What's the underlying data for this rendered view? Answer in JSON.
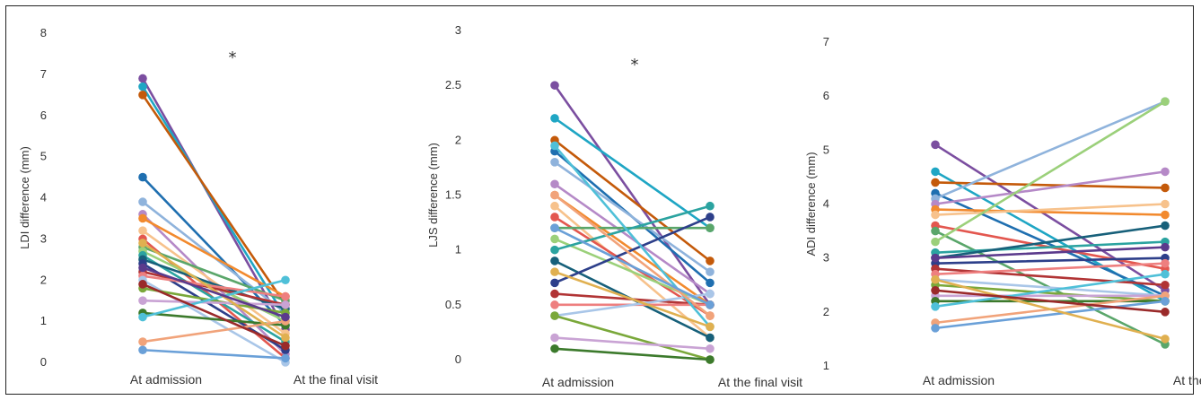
{
  "palette": [
    "#7b4ea0",
    "#1fa6c4",
    "#c45a0a",
    "#1f6fb0",
    "#8fb3dc",
    "#b589c7",
    "#f28a2e",
    "#f7c28c",
    "#e3574f",
    "#5aa66a",
    "#9bd07a",
    "#2ba3a0",
    "#17607a",
    "#2d3f8a",
    "#b13435",
    "#ee7f7f",
    "#a9c6e8",
    "#7aa83a",
    "#c9a3d4",
    "#3c7a2c",
    "#4fc0d8",
    "#f1a37a",
    "#6aa0d8",
    "#e0b050",
    "#5b3a8c",
    "#9a2a2a",
    "#1b4e8a",
    "#f4b6a0",
    "#8ccb5e",
    "#3a8ad0",
    "#d05050",
    "#63b3c8"
  ],
  "chart_data": [
    {
      "type": "line",
      "ylabel": "LDI difference (mm)",
      "ylim": [
        0,
        8
      ],
      "yticks": [
        0,
        1,
        2,
        3,
        4,
        5,
        6,
        7,
        8
      ],
      "categories": [
        "At admission",
        "At the final visit"
      ],
      "annotation": "*",
      "series": [
        {
          "values": [
            6.9,
            0.8
          ]
        },
        {
          "values": [
            6.7,
            1.1
          ]
        },
        {
          "values": [
            6.5,
            1.4
          ]
        },
        {
          "values": [
            4.5,
            0.9
          ]
        },
        {
          "values": [
            3.9,
            1.2
          ]
        },
        {
          "values": [
            3.6,
            0.2
          ]
        },
        {
          "values": [
            3.5,
            1.6
          ]
        },
        {
          "values": [
            3.2,
            0.7
          ]
        },
        {
          "values": [
            3.0,
            0.1
          ]
        },
        {
          "values": [
            2.8,
            1.5
          ]
        },
        {
          "values": [
            2.7,
            1.0
          ]
        },
        {
          "values": [
            2.6,
            0.5
          ]
        },
        {
          "values": [
            2.5,
            1.3
          ]
        },
        {
          "values": [
            2.4,
            0.3
          ]
        },
        {
          "values": [
            2.2,
            1.4
          ]
        },
        {
          "values": [
            2.1,
            1.6
          ]
        },
        {
          "values": [
            2.0,
            0.0
          ]
        },
        {
          "values": [
            1.8,
            1.2
          ]
        },
        {
          "values": [
            1.5,
            1.4
          ]
        },
        {
          "values": [
            1.2,
            0.9
          ]
        },
        {
          "values": [
            1.1,
            2.0
          ]
        },
        {
          "values": [
            0.5,
            1.0
          ]
        },
        {
          "values": [
            0.3,
            0.1
          ]
        },
        {
          "values": [
            2.9,
            0.6
          ]
        },
        {
          "values": [
            2.3,
            1.1
          ]
        },
        {
          "values": [
            1.9,
            0.4
          ]
        }
      ]
    },
    {
      "type": "line",
      "ylabel": "LJS difference (mm)",
      "ylim": [
        0,
        3
      ],
      "yticks": [
        0,
        0.5,
        1,
        1.5,
        2,
        2.5,
        3
      ],
      "categories": [
        "At admission",
        "At the final visit"
      ],
      "annotation": "*",
      "series": [
        {
          "values": [
            2.5,
            0.5
          ]
        },
        {
          "values": [
            2.2,
            1.2
          ]
        },
        {
          "values": [
            2.0,
            0.9
          ]
        },
        {
          "values": [
            1.9,
            0.7
          ]
        },
        {
          "values": [
            1.8,
            0.8
          ]
        },
        {
          "values": [
            1.6,
            0.6
          ]
        },
        {
          "values": [
            1.5,
            0.5
          ]
        },
        {
          "values": [
            1.4,
            0.2
          ]
        },
        {
          "values": [
            1.3,
            0.4
          ]
        },
        {
          "values": [
            1.2,
            1.2
          ]
        },
        {
          "values": [
            1.1,
            0.5
          ]
        },
        {
          "values": [
            1.0,
            1.4
          ]
        },
        {
          "values": [
            0.9,
            0.2
          ]
        },
        {
          "values": [
            0.7,
            1.3
          ]
        },
        {
          "values": [
            0.6,
            0.5
          ]
        },
        {
          "values": [
            0.5,
            0.5
          ]
        },
        {
          "values": [
            0.4,
            0.6
          ]
        },
        {
          "values": [
            0.4,
            0.0
          ]
        },
        {
          "values": [
            0.2,
            0.1
          ]
        },
        {
          "values": [
            0.1,
            0.0
          ]
        },
        {
          "values": [
            1.95,
            0.3
          ]
        },
        {
          "values": [
            1.5,
            0.4
          ]
        },
        {
          "values": [
            1.2,
            0.5
          ]
        },
        {
          "values": [
            0.8,
            0.3
          ]
        }
      ]
    },
    {
      "type": "line",
      "ylabel": "ADI difference (mm)",
      "ylim": [
        1,
        7
      ],
      "yticks": [
        1,
        2,
        3,
        4,
        5,
        6,
        7
      ],
      "categories": [
        "At admission",
        "At the final visit"
      ],
      "series": [
        {
          "values": [
            5.1,
            2.4
          ]
        },
        {
          "values": [
            4.6,
            2.2
          ]
        },
        {
          "values": [
            4.4,
            4.3
          ]
        },
        {
          "values": [
            4.2,
            2.3
          ]
        },
        {
          "values": [
            4.1,
            5.9
          ]
        },
        {
          "values": [
            4.0,
            4.6
          ]
        },
        {
          "values": [
            3.9,
            3.8
          ]
        },
        {
          "values": [
            3.8,
            4.0
          ]
        },
        {
          "values": [
            3.6,
            2.8
          ]
        },
        {
          "values": [
            3.5,
            1.4
          ]
        },
        {
          "values": [
            3.3,
            5.9
          ]
        },
        {
          "values": [
            3.1,
            3.3
          ]
        },
        {
          "values": [
            3.0,
            3.6
          ]
        },
        {
          "values": [
            2.9,
            3.0
          ]
        },
        {
          "values": [
            2.8,
            2.5
          ]
        },
        {
          "values": [
            2.7,
            2.9
          ]
        },
        {
          "values": [
            2.6,
            2.3
          ]
        },
        {
          "values": [
            2.5,
            2.2
          ]
        },
        {
          "values": [
            2.3,
            2.3
          ]
        },
        {
          "values": [
            2.2,
            2.2
          ]
        },
        {
          "values": [
            2.1,
            2.7
          ]
        },
        {
          "values": [
            1.8,
            2.3
          ]
        },
        {
          "values": [
            1.7,
            2.2
          ]
        },
        {
          "values": [
            2.6,
            1.5
          ]
        },
        {
          "values": [
            3.0,
            3.2
          ]
        },
        {
          "values": [
            2.4,
            2.0
          ]
        }
      ]
    }
  ]
}
